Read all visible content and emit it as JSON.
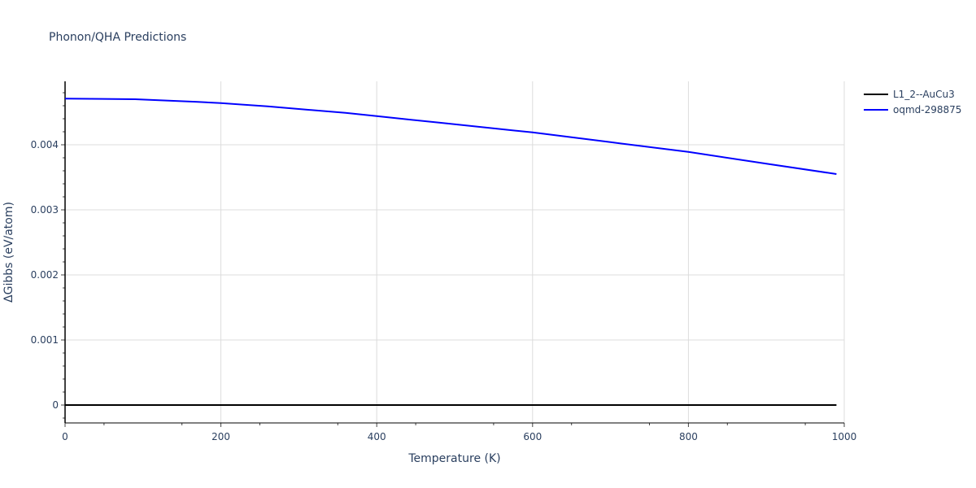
{
  "chart_data": {
    "type": "line",
    "title": "Phonon/QHA Predictions",
    "xlabel": "Temperature (K)",
    "ylabel": "ΔGibbs (eV/atom)",
    "xlim": [
      0,
      1000
    ],
    "ylim": [
      -0.000275,
      0.004975
    ],
    "xticks": [
      0,
      200,
      400,
      600,
      800,
      1000
    ],
    "xtick_labels": [
      "0",
      "200",
      "400",
      "600",
      "800",
      "1000"
    ],
    "yticks": [
      0,
      0.001,
      0.002,
      0.003,
      0.004
    ],
    "ytick_labels": [
      "0",
      "0.001",
      "0.002",
      "0.003",
      "0.004"
    ],
    "grid": true,
    "legend_position": "top-right",
    "series": [
      {
        "name": "L1_2--AuCu3",
        "color": "#000000",
        "x": [
          0,
          990
        ],
        "y": [
          0,
          0
        ]
      },
      {
        "name": "oqmd-298875",
        "color": "#0000ff",
        "x": [
          0,
          90,
          170,
          200,
          260,
          360,
          400,
          480,
          600,
          700,
          800,
          900,
          990
        ],
        "y": [
          0.00471,
          0.0047,
          0.00466,
          0.00464,
          0.00459,
          0.00449,
          0.00444,
          0.00434,
          0.00419,
          0.00404,
          0.00389,
          0.00371,
          0.00355
        ]
      }
    ]
  }
}
